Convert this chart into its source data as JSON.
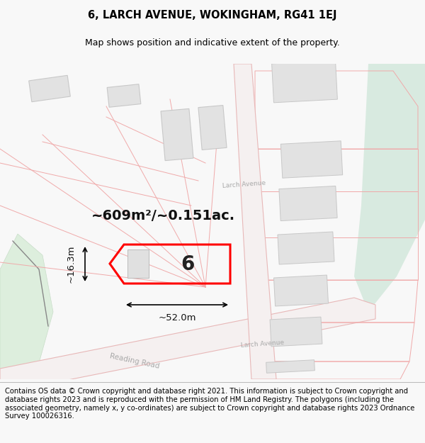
{
  "title_line1": "6, LARCH AVENUE, WOKINGHAM, RG41 1EJ",
  "title_line2": "Map shows position and indicative extent of the property.",
  "footer_text": "Contains OS data © Crown copyright and database right 2021. This information is subject to Crown copyright and database rights 2023 and is reproduced with the permission of HM Land Registry. The polygons (including the associated geometry, namely x, y co-ordinates) are subject to Crown copyright and database rights 2023 Ordnance Survey 100026316.",
  "area_label": "~609m²/~0.151ac.",
  "width_label": "~52.0m",
  "height_label": "~16.3m",
  "plot_number": "6",
  "bg_color": "#f8f8f8",
  "map_bg": "#ffffff",
  "road_stroke": "#e8b8b8",
  "highlight_color": "#ff0000",
  "building_fill": "#e2e2e2",
  "building_outline": "#c8c8c8",
  "green_fill": "#ddeedd",
  "green_outline": "#c8ddc8",
  "parcel_line": "#f0aaaa",
  "dim_line_color": "#000000",
  "teal_fill": "#d8eae0",
  "title_fontsize": 10.5,
  "subtitle_fontsize": 9,
  "footer_fontsize": 7.2,
  "area_fontsize": 14,
  "plot_num_fontsize": 20,
  "dim_fontsize": 9.5
}
